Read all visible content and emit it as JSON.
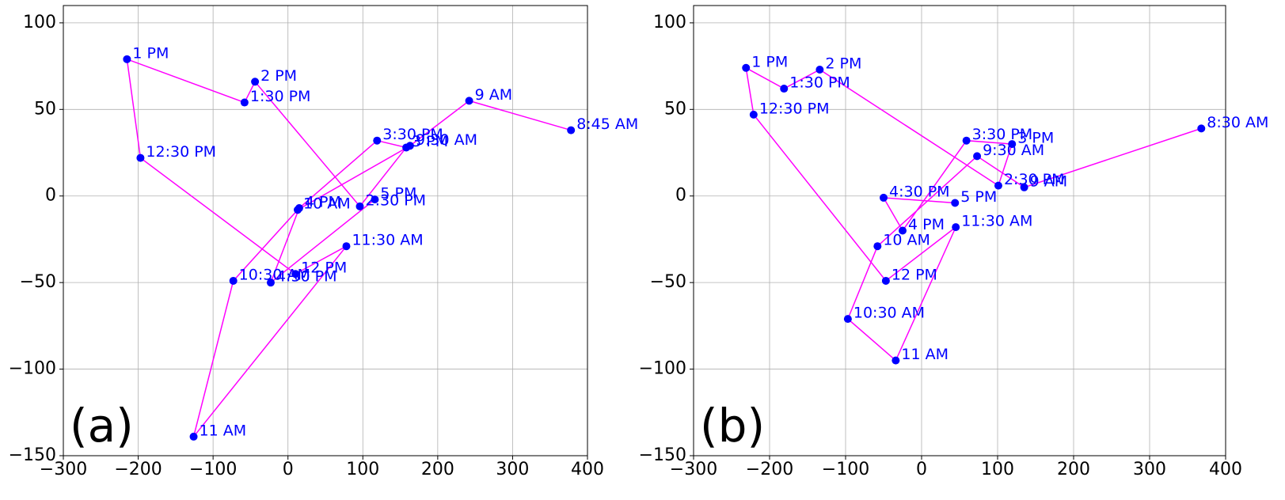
{
  "chart_data": [
    {
      "type": "scatter",
      "label": "(a)",
      "grid": true,
      "xlim": [
        -300,
        400
      ],
      "ylim": [
        -150,
        110
      ],
      "xticks": [
        {
          "value": -300,
          "label": "−300"
        },
        {
          "value": -200,
          "label": "−200"
        },
        {
          "value": -100,
          "label": "−100"
        },
        0,
        100,
        200,
        300,
        400
      ],
      "yticks": [
        {
          "value": -150,
          "label": "−150"
        },
        {
          "value": -100,
          "label": "−100"
        },
        {
          "value": -50,
          "label": "−50"
        },
        0,
        50,
        100
      ],
      "line_color": "#ff00ff",
      "color": "#0000ff",
      "labels": [
        "8:45 AM",
        "9 AM",
        "9:30 AM",
        "10 AM",
        "10:30 AM",
        "11 AM",
        "11:30 AM",
        "12 PM",
        "12:30 PM",
        "1 PM",
        "1:30 PM",
        "2 PM",
        "2:30 PM",
        "3 PM",
        "3:30 PM",
        "4 PM",
        "4:30 PM",
        "5 PM"
      ],
      "x": [
        378,
        242,
        163,
        13,
        -73,
        -126,
        78,
        10,
        -197,
        -215,
        -58,
        -44,
        96,
        158,
        119,
        15,
        -23,
        116
      ],
      "y": [
        38,
        55,
        29,
        -8,
        -49,
        -139,
        -29,
        -45,
        22,
        79,
        54,
        66,
        -6,
        28,
        32,
        -7,
        -50,
        -2
      ]
    },
    {
      "type": "scatter",
      "label": "(b)",
      "grid": true,
      "xlim": [
        -300,
        400
      ],
      "ylim": [
        -150,
        110
      ],
      "xticks": [
        {
          "value": -300,
          "label": "−300"
        },
        {
          "value": -200,
          "label": "−200"
        },
        {
          "value": -100,
          "label": "−100"
        },
        0,
        100,
        200,
        300,
        400
      ],
      "yticks": [
        {
          "value": -150,
          "label": "−150"
        },
        {
          "value": -100,
          "label": "−100"
        },
        {
          "value": -50,
          "label": "−50"
        },
        0,
        50,
        100
      ],
      "line_color": "#ff00ff",
      "color": "#0000ff",
      "labels": [
        "8:30 AM",
        "9 AM",
        "9:30 AM",
        "10 AM",
        "10:30 AM",
        "11 AM",
        "11:30 AM",
        "12 PM",
        "12:30 PM",
        "1 PM",
        "1:30 PM",
        "2 PM",
        "2:30 PM",
        "3 PM",
        "3:30 PM",
        "4 PM",
        "4:30 PM",
        "5 PM"
      ],
      "x": [
        368,
        135,
        73,
        -58,
        -97,
        -34,
        45,
        -47,
        -221,
        -231,
        -181,
        -134,
        101,
        119,
        59,
        -25,
        -50,
        44
      ],
      "y": [
        39,
        5,
        23,
        -29,
        -71,
        -95,
        -18,
        -49,
        47,
        74,
        62,
        73,
        6,
        30,
        32,
        -20,
        -1,
        -4
      ]
    }
  ]
}
